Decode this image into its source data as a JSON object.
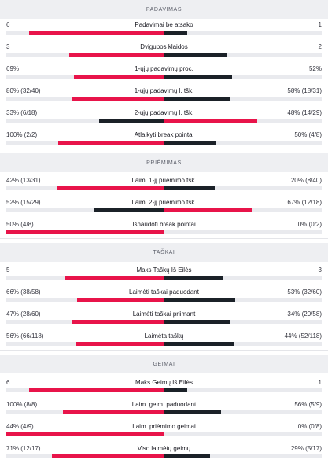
{
  "sections": [
    {
      "title": "PADAVIMAS",
      "rows": [
        {
          "label": "Padavimai be atsako",
          "left": "6",
          "right": "1",
          "left_frac": 0.857,
          "right_frac": 0.143,
          "left_color": "#e8144a",
          "right_color": "#1b2128"
        },
        {
          "label": "Dvigubos klaidos",
          "left": "3",
          "right": "2",
          "left_frac": 0.6,
          "right_frac": 0.4,
          "left_color": "#e8144a",
          "right_color": "#1b2128"
        },
        {
          "label": "1-ųjų padavimų proc.",
          "left": "69%",
          "right": "52%",
          "left_frac": 0.57,
          "right_frac": 0.43,
          "left_color": "#e8144a",
          "right_color": "#1b2128"
        },
        {
          "label": "1-ųjų padavimų l. tšk.",
          "left": "80% (32/40)",
          "right": "58% (18/31)",
          "left_frac": 0.58,
          "right_frac": 0.42,
          "left_color": "#e8144a",
          "right_color": "#1b2128"
        },
        {
          "label": "2-ųjų padavimų l. tšk.",
          "left": "33% (6/18)",
          "right": "48% (14/29)",
          "left_frac": 0.41,
          "right_frac": 0.59,
          "left_color": "#1b2128",
          "right_color": "#e8144a"
        },
        {
          "label": "Atlaikyti break pointai",
          "left": "100% (2/2)",
          "right": "50% (4/8)",
          "left_frac": 0.67,
          "right_frac": 0.33,
          "left_color": "#e8144a",
          "right_color": "#1b2128"
        }
      ]
    },
    {
      "title": "PRIĖMIMAS",
      "rows": [
        {
          "label": "Laim. 1-jį priėmimo tšk.",
          "left": "42% (13/31)",
          "right": "20% (8/40)",
          "left_frac": 0.68,
          "right_frac": 0.32,
          "left_color": "#e8144a",
          "right_color": "#1b2128"
        },
        {
          "label": "Laim. 2-jį priėmimo tšk.",
          "left": "52% (15/29)",
          "right": "67% (12/18)",
          "left_frac": 0.44,
          "right_frac": 0.56,
          "left_color": "#1b2128",
          "right_color": "#e8144a"
        },
        {
          "label": "Išnaudoti break pointai",
          "left": "50% (4/8)",
          "right": "0% (0/2)",
          "left_frac": 1.0,
          "right_frac": 0.0,
          "left_color": "#e8144a",
          "right_color": "#1b2128"
        }
      ]
    },
    {
      "title": "TAŠKAI",
      "rows": [
        {
          "label": "Maks Taškų Iš Eilės",
          "left": "5",
          "right": "3",
          "left_frac": 0.625,
          "right_frac": 0.375,
          "left_color": "#e8144a",
          "right_color": "#1b2128"
        },
        {
          "label": "Laimėti taškai paduodant",
          "left": "66% (38/58)",
          "right": "53% (32/60)",
          "left_frac": 0.55,
          "right_frac": 0.45,
          "left_color": "#e8144a",
          "right_color": "#1b2128"
        },
        {
          "label": "Laimėti taškai priimant",
          "left": "47% (28/60)",
          "right": "34% (20/58)",
          "left_frac": 0.58,
          "right_frac": 0.42,
          "left_color": "#e8144a",
          "right_color": "#1b2128"
        },
        {
          "label": "Laimėta taškų",
          "left": "56% (66/118)",
          "right": "44% (52/118)",
          "left_frac": 0.56,
          "right_frac": 0.44,
          "left_color": "#e8144a",
          "right_color": "#1b2128"
        }
      ]
    },
    {
      "title": "GEIMAI",
      "rows": [
        {
          "label": "Maks Geimų Iš Eilės",
          "left": "6",
          "right": "1",
          "left_frac": 0.857,
          "right_frac": 0.143,
          "left_color": "#e8144a",
          "right_color": "#1b2128"
        },
        {
          "label": "Laim. geim. paduodant",
          "left": "100% (8/8)",
          "right": "56% (5/9)",
          "left_frac": 0.64,
          "right_frac": 0.36,
          "left_color": "#e8144a",
          "right_color": "#1b2128"
        },
        {
          "label": "Laim. priėmimo geimai",
          "left": "44% (4/9)",
          "right": "0% (0/8)",
          "left_frac": 1.0,
          "right_frac": 0.0,
          "left_color": "#e8144a",
          "right_color": "#1b2128"
        },
        {
          "label": "Viso laimėtų geimų",
          "left": "71% (12/17)",
          "right": "29% (5/17)",
          "left_frac": 0.71,
          "right_frac": 0.29,
          "left_color": "#e8144a",
          "right_color": "#1b2128"
        }
      ]
    }
  ]
}
